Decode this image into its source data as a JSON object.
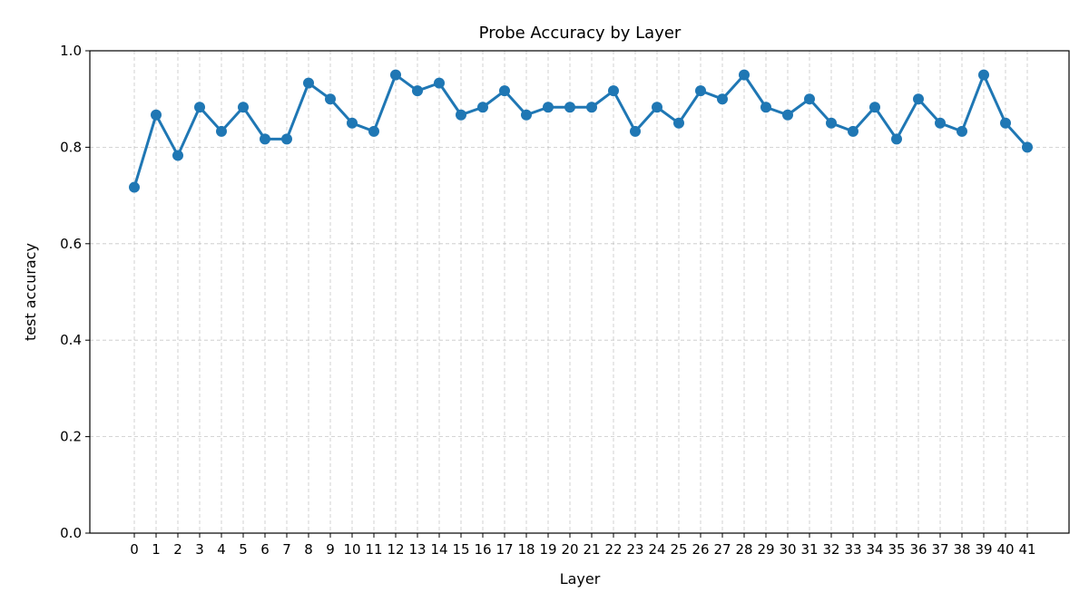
{
  "chart_data": {
    "type": "line",
    "title": "Probe Accuracy by Layer",
    "xlabel": "Layer",
    "ylabel": "test accuracy",
    "ylim": [
      0.0,
      1.0
    ],
    "yticks": [
      0.0,
      0.2,
      0.4,
      0.6,
      0.8,
      1.0
    ],
    "ytick_labels": [
      "0.0",
      "0.2",
      "0.4",
      "0.6",
      "0.8",
      "1.0"
    ],
    "grid": true,
    "x": [
      0,
      1,
      2,
      3,
      4,
      5,
      6,
      7,
      8,
      9,
      10,
      11,
      12,
      13,
      14,
      15,
      16,
      17,
      18,
      19,
      20,
      21,
      22,
      23,
      24,
      25,
      26,
      27,
      28,
      29,
      30,
      31,
      32,
      33,
      34,
      35,
      36,
      37,
      38,
      39,
      40,
      41
    ],
    "x_labels": [
      "0",
      "1",
      "2",
      "3",
      "4",
      "5",
      "6",
      "7",
      "8",
      "9",
      "10",
      "11",
      "12",
      "13",
      "14",
      "15",
      "16",
      "17",
      "18",
      "19",
      "20",
      "21",
      "22",
      "23",
      "24",
      "25",
      "26",
      "27",
      "28",
      "29",
      "30",
      "31",
      "32",
      "33",
      "34",
      "35",
      "36",
      "37",
      "38",
      "39",
      "40",
      "41"
    ],
    "series": [
      {
        "color": "#1f77b4",
        "values": [
          0.717,
          0.867,
          0.783,
          0.883,
          0.833,
          0.883,
          0.817,
          0.817,
          0.933,
          0.9,
          0.85,
          0.833,
          0.95,
          0.917,
          0.933,
          0.867,
          0.883,
          0.917,
          0.867,
          0.883,
          0.883,
          0.883,
          0.917,
          0.833,
          0.883,
          0.85,
          0.917,
          0.9,
          0.95,
          0.883,
          0.867,
          0.9,
          0.85,
          0.833,
          0.883,
          0.817,
          0.9,
          0.85,
          0.833,
          0.95,
          0.85,
          0.8
        ]
      }
    ]
  }
}
